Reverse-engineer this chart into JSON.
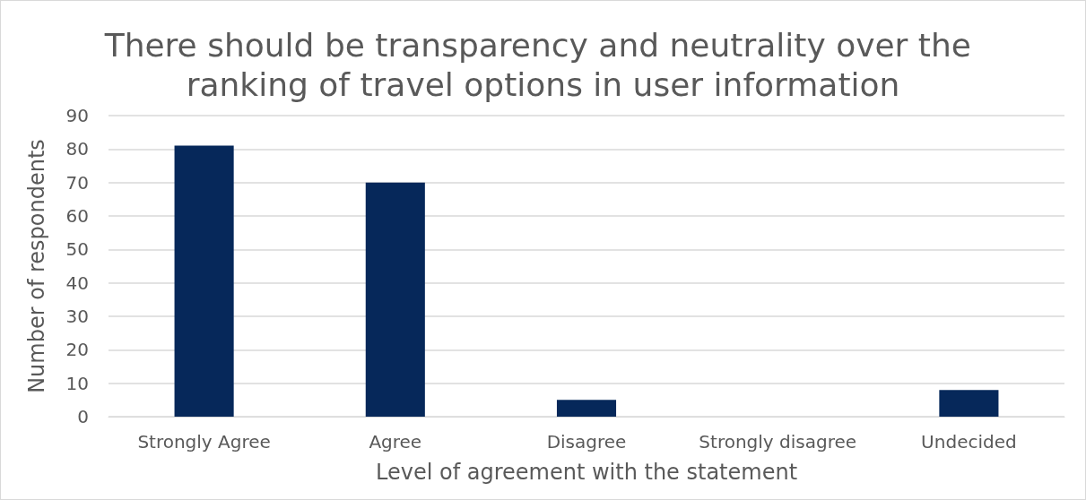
{
  "chart_data": {
    "type": "bar",
    "title": "There should be transparency and neutrality over the ranking of travel options in user information",
    "xlabel": "Level of agreement with the statement",
    "ylabel": "Number of respondents",
    "categories": [
      "Strongly Agree",
      "Agree",
      "Disagree",
      "Strongly disagree",
      "Undecided"
    ],
    "values": [
      81,
      70,
      5,
      0,
      8
    ],
    "color": "#06285a",
    "ylim": [
      0,
      90
    ],
    "yticks": [
      0,
      10,
      20,
      30,
      40,
      50,
      60,
      70,
      80,
      90
    ],
    "grid": "y"
  }
}
